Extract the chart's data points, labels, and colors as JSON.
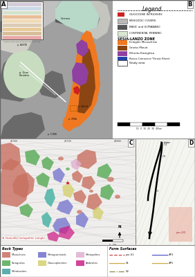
{
  "legend_title": "Legend",
  "legend_items": [
    {
      "label": "OLIGOCENE INTRUSIVES",
      "color": "#cc2222"
    },
    {
      "label": "MESOZOIC COVERS",
      "color": "#b8b8b8"
    },
    {
      "label": "BASIC and ULTRABASIC",
      "color": "#555555"
    },
    {
      "label": "CONTINENTAL PENNINIC",
      "color": "#d8e8d0"
    }
  ],
  "sesia_lanzo_items": [
    {
      "label": "Eclogitic Micaschists",
      "color": "#f07820"
    },
    {
      "label": "Gneiss Minuti",
      "color": "#8B4513"
    },
    {
      "label": "IIDiorito-Kinzigitica",
      "color": "#9040a0"
    },
    {
      "label": "Rocca Canavese Thrust-Sheet",
      "color": "#2244aa"
    }
  ],
  "rock_types": [
    {
      "label": "Micaschists",
      "color": "#c87060"
    },
    {
      "label": "Paragneiss",
      "color": "#55aa55"
    },
    {
      "label": "Metabasites",
      "color": "#40a0a0"
    },
    {
      "label": "Metagranitoids",
      "color": "#7070cc"
    },
    {
      "label": "Glaucophanites",
      "color": "#d4d070"
    },
    {
      "label": "Metaaplites",
      "color": "#e0b0d0"
    },
    {
      "label": "Andesites",
      "color": "#cc2288"
    }
  ],
  "bg_white": "#ffffff",
  "bg_light": "#f5f5f2",
  "dark_geo": "#555555",
  "med_gray": "#888888",
  "light_gray": "#b0b0b0",
  "orange_geo": "#f07820",
  "brown_geo": "#8B4513",
  "purple_geo": "#9040a0",
  "light_green_geo": "#c8ddc0",
  "teal_green": "#90c090"
}
